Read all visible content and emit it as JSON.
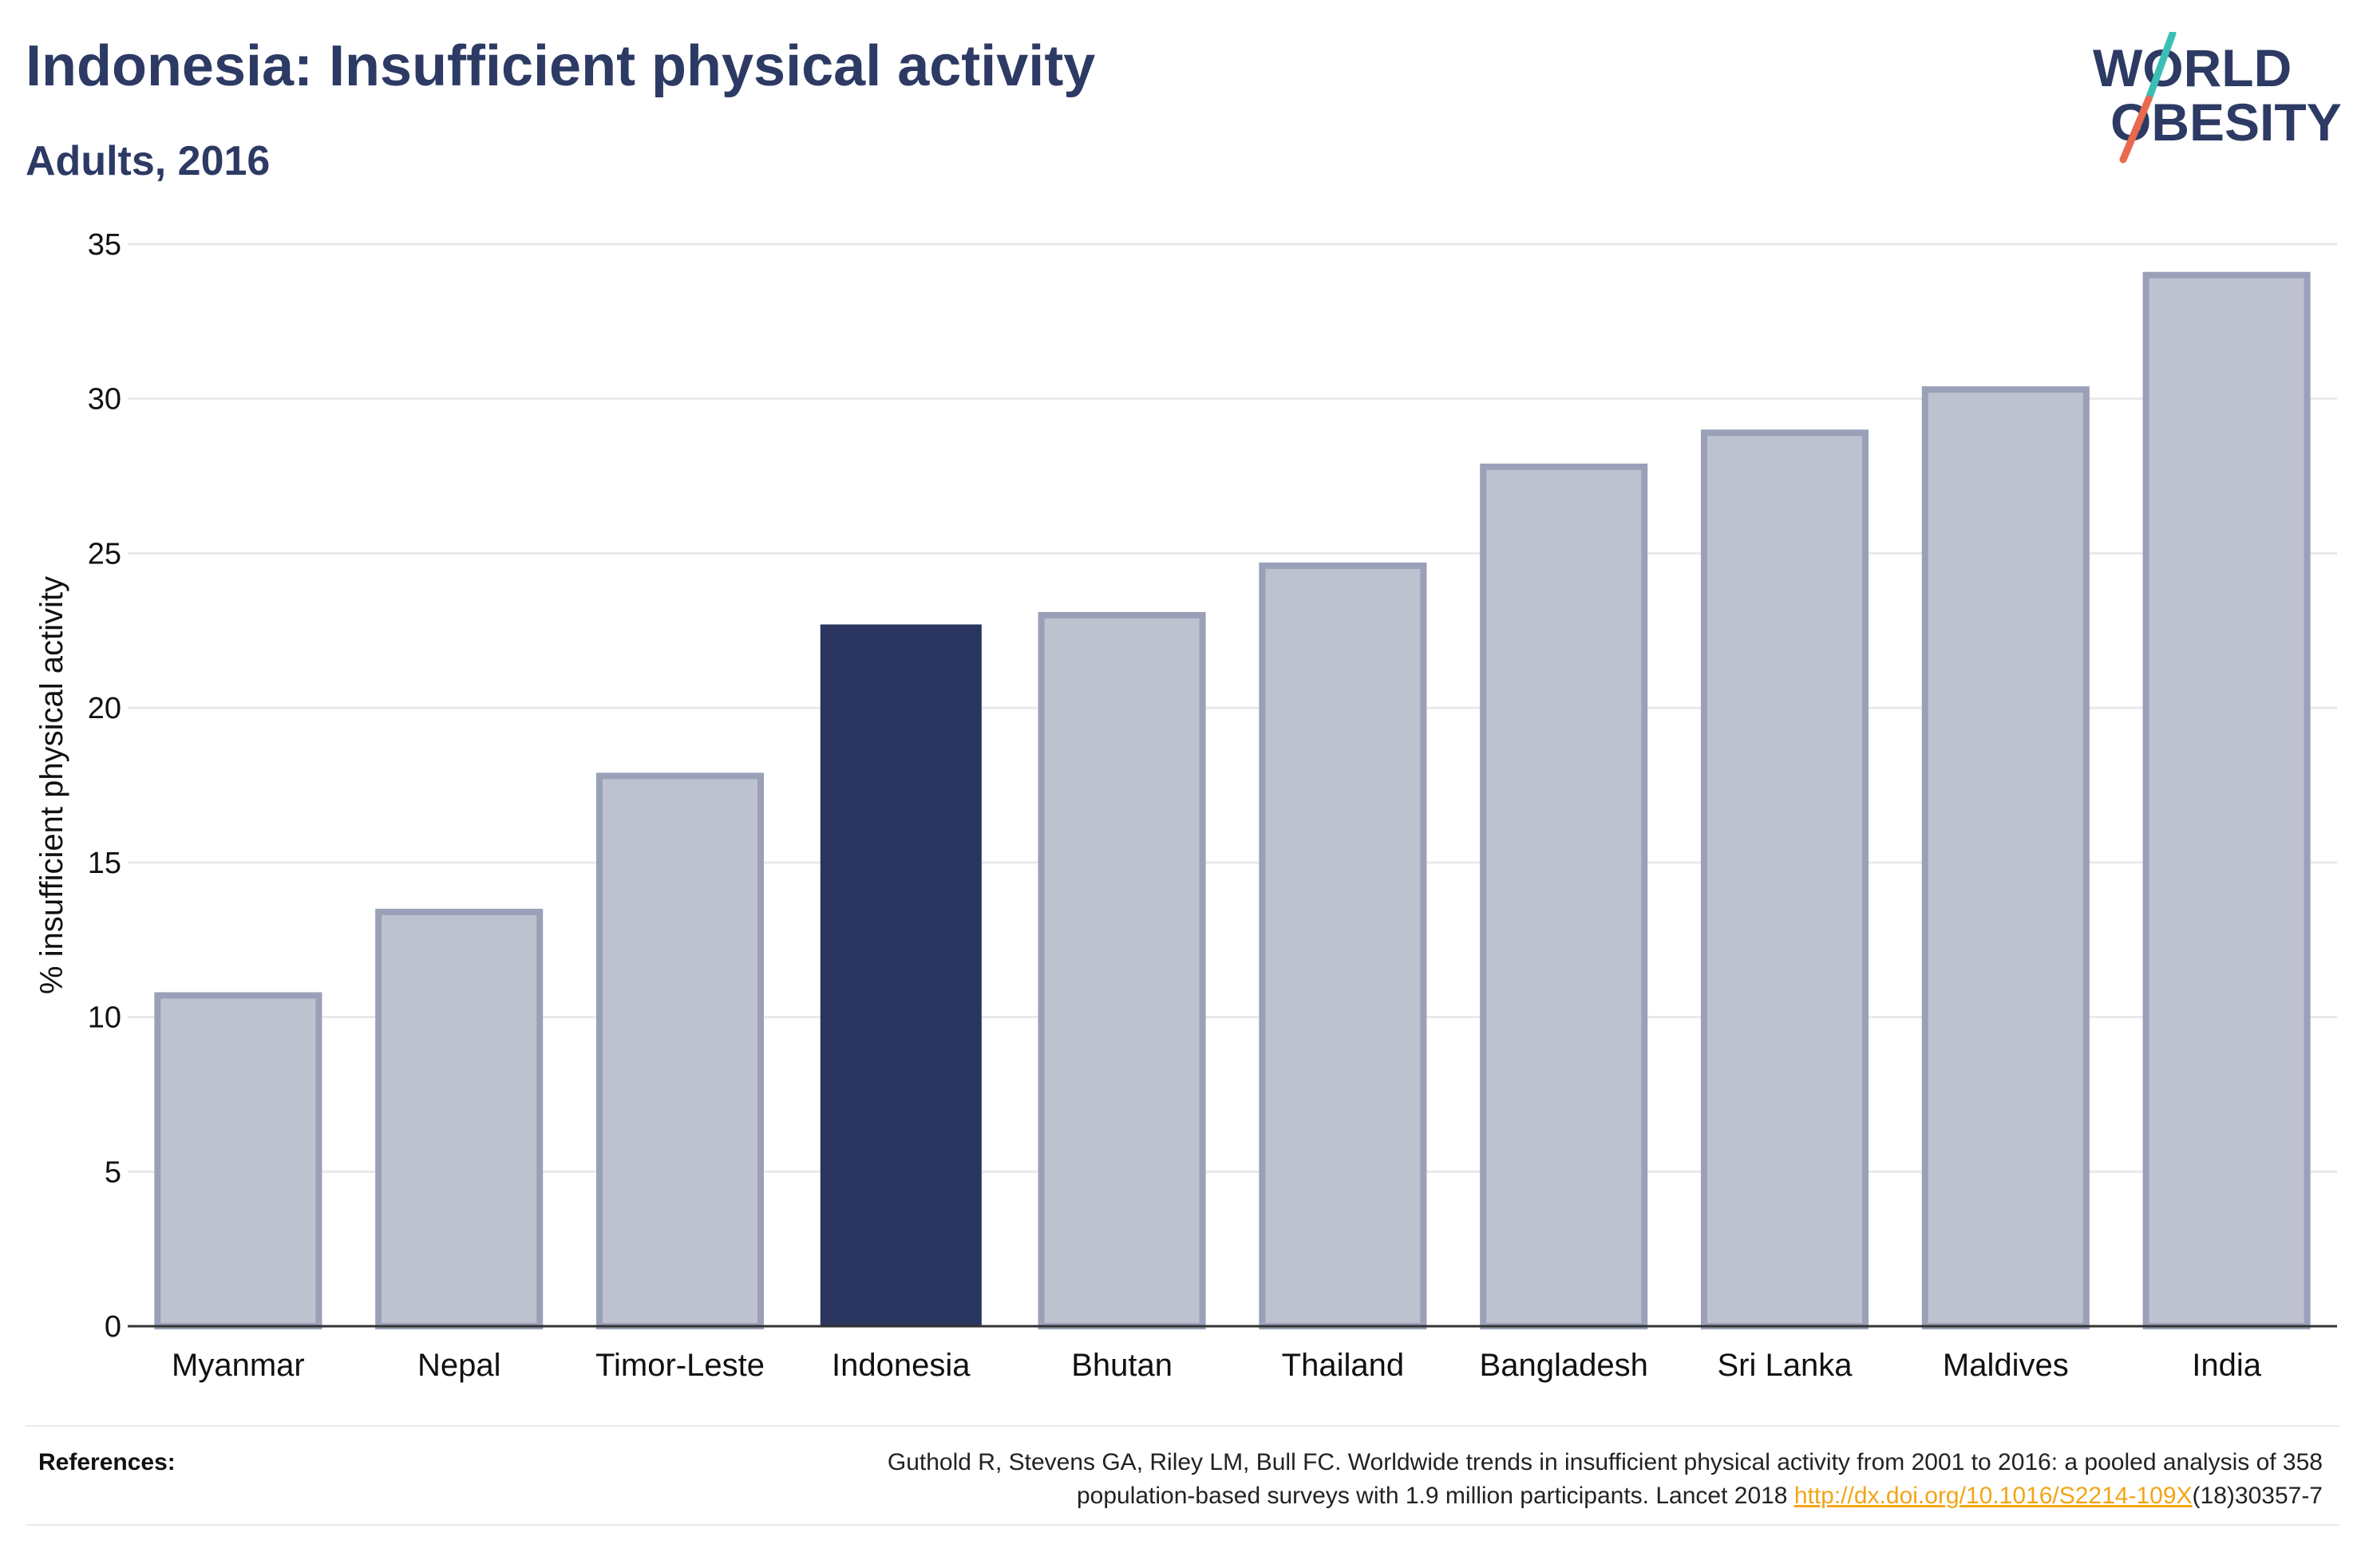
{
  "header": {
    "title": "Indonesia: Insufficient physical activity",
    "subtitle": "Adults, 2016"
  },
  "logo": {
    "line1": "WORLD",
    "line2": "OBESITY",
    "text_color": "#2c3a64",
    "slash_top_color": "#3bbfb5",
    "slash_bottom_color": "#e8694f"
  },
  "chart_data": {
    "type": "bar",
    "ylabel": "% insufficient physical activity",
    "xlabel": "",
    "ylim": [
      0,
      35
    ],
    "yticks": [
      0,
      5,
      10,
      15,
      20,
      25,
      30,
      35
    ],
    "grid": true,
    "categories": [
      "Myanmar",
      "Nepal",
      "Timor-Leste",
      "Indonesia",
      "Bhutan",
      "Thailand",
      "Bangladesh",
      "Sri Lanka",
      "Maldives",
      "India"
    ],
    "values": [
      10.7,
      13.4,
      17.8,
      22.7,
      23.0,
      24.6,
      27.8,
      28.9,
      30.3,
      34.0
    ],
    "highlight": "Indonesia",
    "colors": {
      "bar": "#bec1ce",
      "bar_border": "#9aa0b8",
      "highlight": "#2b3660",
      "grid": "#e9e9e9",
      "axis": "#333333"
    }
  },
  "references": {
    "label": "References:",
    "text_line1": "Guthold R, Stevens GA, Riley LM, Bull FC. Worldwide trends in insufficient physical activity from 2001 to 2016: a pooled analysis of 358",
    "text_line2_prefix": "population-based surveys with 1.9 million participants. Lancet 2018 ",
    "link": "http://dx.doi.org/10.1016/S2214-109X",
    "text_line2_suffix": "(18)30357-7"
  }
}
